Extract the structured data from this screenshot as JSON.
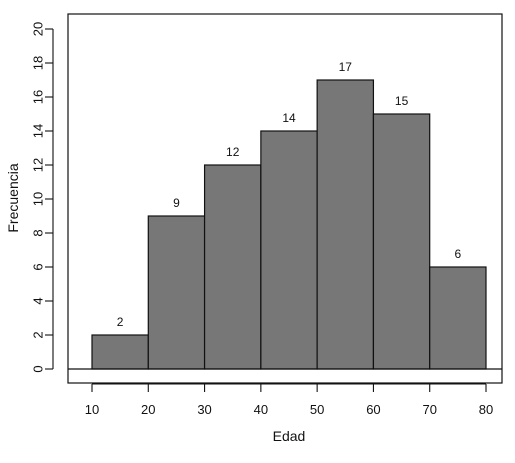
{
  "chart_data": {
    "type": "bar",
    "bins": [
      {
        "start": 10,
        "end": 20,
        "value": 2
      },
      {
        "start": 20,
        "end": 30,
        "value": 9
      },
      {
        "start": 30,
        "end": 40,
        "value": 12
      },
      {
        "start": 40,
        "end": 50,
        "value": 14
      },
      {
        "start": 50,
        "end": 60,
        "value": 17
      },
      {
        "start": 60,
        "end": 70,
        "value": 15
      },
      {
        "start": 70,
        "end": 80,
        "value": 6
      }
    ],
    "data_labels": [
      "2",
      "9",
      "12",
      "14",
      "17",
      "15",
      "6"
    ],
    "xlabel": "Edad",
    "ylabel": "Frecuencia",
    "xlim": [
      10,
      80
    ],
    "ylim": [
      0,
      20
    ],
    "xticks": [
      10,
      20,
      30,
      40,
      50,
      60,
      70,
      80
    ],
    "yticks": [
      0,
      2,
      4,
      6,
      8,
      10,
      12,
      14,
      16,
      18,
      20
    ],
    "grid": false,
    "legend": "none",
    "bar_color": "#777777",
    "edge_color": "#111111"
  }
}
